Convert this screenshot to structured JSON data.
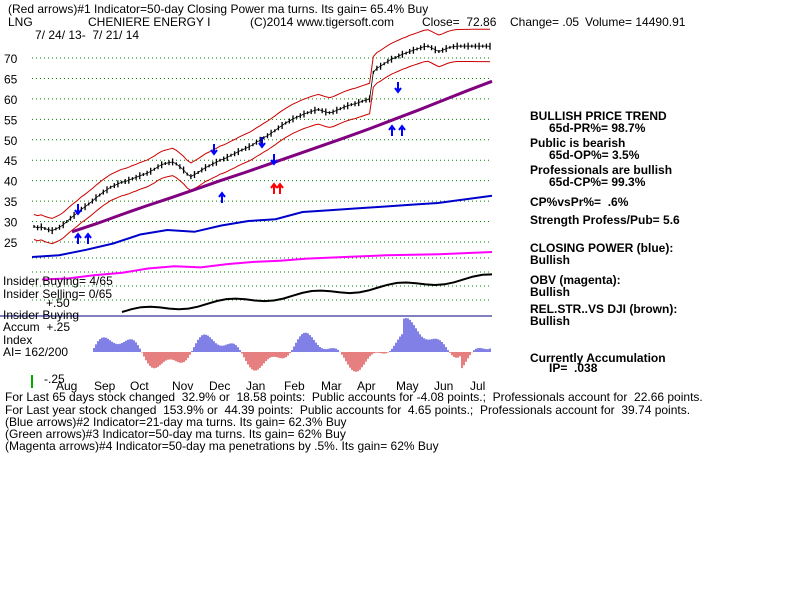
{
  "header": {
    "line1": "(Red arrows)#1 Indicator=50-day Closing Power ma turns. Its gain= 65.4% Buy",
    "symbol": "LNG",
    "company": "CHENIERE ENERGY I",
    "copyright": "(C)2014 www.tigersoft.com",
    "close": "Close=  72.86",
    "change": "Change= .05",
    "volume": "Volume= 14490.91",
    "date_range": "7/ 24/ 13-  7/ 21/ 14"
  },
  "right_panel": [
    {
      "text": "BULLISH PRICE TREND",
      "bold": true
    },
    {
      "text": "65d-PR%= 98.7%",
      "bold": true
    },
    {
      "text": "Public is bearish",
      "bold": true
    },
    {
      "text": "65d-OP%= 3.5%",
      "bold": true
    },
    {
      "text": "Professionals are bullish",
      "bold": true
    },
    {
      "text": "65d-CP%= 99.3%",
      "bold": true
    },
    {
      "text": "CP%vsPr%=  .6%",
      "bold": true
    },
    {
      "text": "Strength Profess/Pub= 5.6",
      "bold": true
    },
    {
      "text": "CLOSING POWER (blue):",
      "bold": true
    },
    {
      "text": "Bullish",
      "bold": true
    },
    {
      "text": "OBV (magenta):",
      "bold": true
    },
    {
      "text": "Bullish",
      "bold": true
    },
    {
      "text": "REL.STR..VS DJI (brown):",
      "bold": true
    },
    {
      "text": "Bullish",
      "bold": true
    },
    {
      "text": "Currently Accumulation",
      "bold": true
    },
    {
      "text": "IP=  .038",
      "bold": true
    }
  ],
  "left_labels": {
    "insider_buying": "Insider Buying= 4/65",
    "insider_selling": "Insider Selling= 0/65",
    "plus50": "+.50",
    "insider_buying2": "Insider Buying",
    "accum": "Accum  +.25",
    "index": "Index",
    "ai": "AI= 162/200",
    "minus25": "-.25"
  },
  "footer": [
    "For Last 65 days stock changed  32.9% or  18.58 points:  Public accounts for -4.08 points.;  Professionals account for  22.66 points.",
    "For Last year stock changed  153.9% or  44.39 points:  Public accounts for  4.65 points.;  Professionals account for  39.74 points.",
    "(Blue arrows)#2 Indicator=21-day ma turns. Its gain= 62.3% Buy",
    "(Green arrows)#3 Indicator=50-day ma turns. Its gain= 62% Buy",
    "(Magenta arrows)#4 Indicator=50-day ma penetrations by .5%. Its gain= 62% Buy"
  ],
  "colors": {
    "price": "#000000",
    "band": "#cc0000",
    "ma50": "#800080",
    "closing_power": "#0000cc",
    "obv": "#ff00ff",
    "rel_strength": "#000000",
    "accumulation_pos": "#0000cc",
    "accumulation_neg": "#cc0000",
    "grid": "#008000",
    "buy_arrow_blue": "#0000ff",
    "buy_arrow_red": "#ff0000"
  },
  "chart_data": {
    "type": "line",
    "title": "CHENIERE ENERGY I",
    "x_tick_labels": [
      "Aug",
      "Sep",
      "Oct",
      "Nov",
      "Dec",
      "Jan",
      "Feb",
      "Mar",
      "Apr",
      "May",
      "Jun",
      "Jul"
    ],
    "y_tick_labels": [
      25,
      30,
      35,
      40,
      45,
      50,
      55,
      60,
      65,
      70
    ],
    "ylim": [
      22,
      76
    ],
    "grid": true,
    "series": [
      {
        "name": "Price",
        "x": [
          0,
          10,
          20,
          30,
          40,
          50,
          60,
          70,
          80,
          90,
          100,
          110,
          120,
          130,
          140,
          150,
          160,
          170,
          180,
          190,
          200,
          210,
          220,
          230,
          240,
          250,
          260,
          270,
          280,
          290,
          300,
          310,
          320,
          330,
          340,
          350,
          360,
          370,
          380,
          390,
          400,
          410,
          420,
          430,
          440,
          450,
          460,
          470,
          480,
          490,
          500,
          510,
          520,
          530,
          540,
          550,
          560,
          570,
          580,
          590,
          600,
          610,
          620,
          630,
          640,
          650,
          660,
          670,
          680,
          690,
          700,
          710,
          720,
          730,
          740,
          750,
          760,
          770,
          780,
          790,
          800,
          810,
          820,
          830,
          840,
          850,
          860,
          870,
          880,
          890,
          900,
          910,
          920,
          930,
          940,
          950,
          960,
          970,
          980,
          990,
          1000,
          1010,
          1020,
          1030,
          1040,
          1050,
          1060,
          1070,
          1080,
          1090,
          1100,
          1110,
          1120,
          1130,
          1140,
          1150,
          1160,
          1170,
          1180,
          1190,
          1200,
          1210,
          1220,
          1230,
          1240,
          1250
        ],
        "values": [
          28.8,
          28.5,
          28.7,
          28.3,
          28.0,
          27.8,
          28.2,
          28.6,
          29.2,
          30.0,
          30.8,
          31.5,
          32.2,
          33.0,
          33.6,
          34.3,
          35.0,
          35.8,
          36.5,
          37.2,
          37.8,
          38.4,
          38.8,
          39.2,
          39.6,
          39.8,
          40.1,
          40.5,
          40.8,
          41.2,
          41.5,
          41.8,
          42.3,
          42.8,
          43.4,
          43.9,
          44.2,
          44.4,
          44.6,
          44.1,
          43.4,
          42.6,
          41.6,
          41.0,
          41.5,
          42.0,
          42.6,
          43.2,
          43.6,
          44.1,
          44.5,
          45.0,
          45.3,
          45.7,
          46.2,
          46.6,
          47.1,
          47.5,
          47.9,
          48.3,
          48.8,
          49.4,
          49.9,
          50.5,
          51.0,
          51.6,
          52.2,
          52.9,
          53.5,
          54.1,
          54.6,
          55.1,
          55.5,
          55.9,
          56.3,
          56.6,
          56.9,
          57.2,
          57.4,
          57.1,
          56.8,
          56.6,
          56.8,
          57.2,
          57.6,
          58.0,
          58.3,
          58.6,
          58.8,
          59.1,
          59.4,
          59.7,
          60.0,
          66.5,
          67.5,
          68.0,
          68.6,
          69.2,
          69.7,
          70.1,
          70.5,
          70.9,
          71.2,
          71.6,
          71.9,
          72.2,
          72.5,
          72.8,
          72.9,
          72.5,
          72.0,
          71.6,
          71.9,
          72.3,
          72.6,
          72.8,
          72.9,
          72.9,
          72.9,
          72.9,
          72.9,
          72.9,
          72.9,
          72.9,
          72.9,
          72.86
        ]
      },
      {
        "name": "50-day MA",
        "values": [
          27.5,
          29.5,
          31.7,
          33.8,
          35.8,
          37.9,
          40.0,
          42.0,
          44.1,
          46.2,
          48.3,
          50.4,
          52.6,
          54.9,
          57.2,
          59.6,
          62.0,
          64.3
        ]
      },
      {
        "name": "Closing Power",
        "values": [
          0.2,
          0.22,
          0.28,
          0.35,
          0.45,
          0.5,
          0.48,
          0.55,
          0.6,
          0.62,
          0.7,
          0.72,
          0.74,
          0.76,
          0.78,
          0.8,
          0.84,
          0.88
        ]
      },
      {
        "name": "OBV",
        "values": [
          0.1,
          0.12,
          0.18,
          0.22,
          0.3,
          0.34,
          0.32,
          0.38,
          0.42,
          0.44,
          0.48,
          0.5,
          0.52,
          0.54,
          0.55,
          0.56,
          0.58,
          0.6
        ]
      }
    ]
  }
}
